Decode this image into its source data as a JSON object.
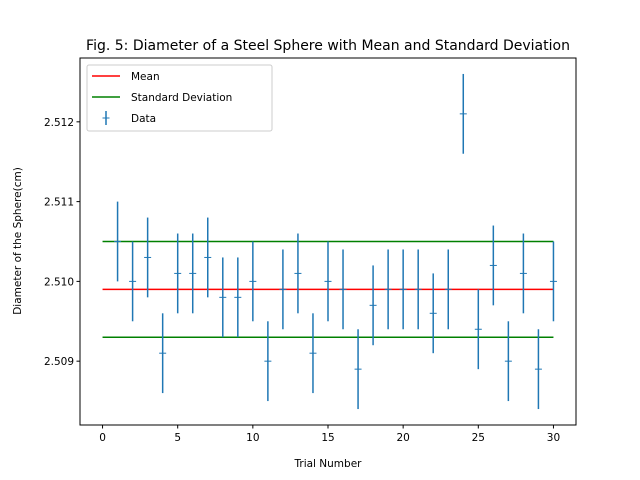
{
  "chart_data": {
    "type": "scatter",
    "title": "Fig. 5: Diameter of a Steel Sphere with Mean and Standard Deviation",
    "xlabel": "Trial Number",
    "ylabel": "Diameter of the Sphere(cm)",
    "xlim": [
      -1.5,
      31.5
    ],
    "ylim": [
      2.5082,
      2.5128
    ],
    "xticks": [
      0,
      5,
      10,
      15,
      20,
      25,
      30
    ],
    "xtick_labels": [
      "0",
      "5",
      "10",
      "15",
      "20",
      "25",
      "30"
    ],
    "yticks": [
      2.509,
      2.51,
      2.511,
      2.512
    ],
    "ytick_labels": [
      "2.509",
      "2.510",
      "2.511",
      "2.512"
    ],
    "grid": false,
    "legend_position": "top-left",
    "legend": [
      {
        "label": "Mean",
        "kind": "line",
        "color": "#ff0000"
      },
      {
        "label": "Standard Deviation",
        "kind": "line",
        "color": "#008000"
      },
      {
        "label": "Data",
        "kind": "errorbar",
        "color": "#1f77b4"
      }
    ],
    "mean": {
      "name": "Mean",
      "color": "#ff0000",
      "x": [
        0,
        30
      ],
      "y": 2.5099
    },
    "std_lines": {
      "name": "Standard Deviation",
      "color": "#008000",
      "x": [
        0,
        30
      ],
      "y": [
        2.5093,
        2.5105
      ]
    },
    "series": [
      {
        "name": "Data",
        "color": "#1f77b4",
        "yerr": 0.0005,
        "x": [
          1,
          2,
          3,
          4,
          5,
          6,
          7,
          8,
          9,
          10,
          11,
          12,
          13,
          14,
          15,
          16,
          17,
          18,
          19,
          20,
          21,
          22,
          23,
          24,
          25,
          26,
          27,
          28,
          29,
          30
        ],
        "y": [
          2.5105,
          2.51,
          2.5103,
          2.5091,
          2.5101,
          2.5101,
          2.5103,
          2.5098,
          2.5098,
          2.51,
          2.509,
          2.5099,
          2.5101,
          2.5091,
          2.51,
          2.5099,
          2.5089,
          2.5097,
          2.5099,
          2.5099,
          2.5099,
          2.5096,
          2.5099,
          2.5121,
          2.5094,
          2.5102,
          2.509,
          2.5101,
          2.5089,
          2.51
        ]
      }
    ]
  }
}
